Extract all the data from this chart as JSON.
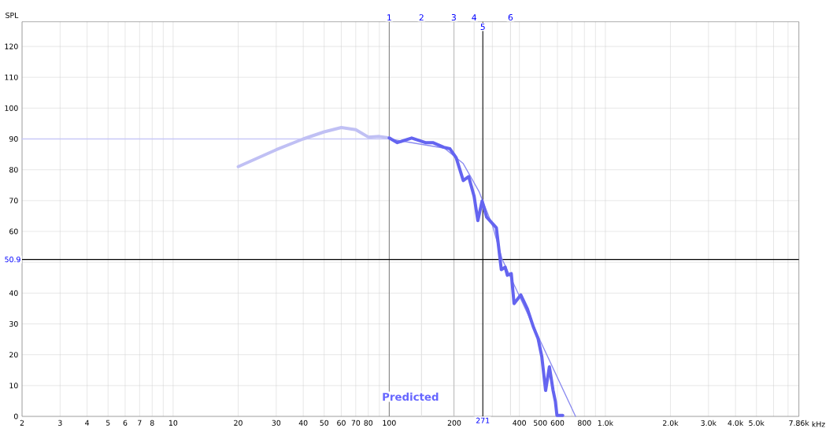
{
  "chart_data": {
    "type": "line",
    "ylabel": "SPL",
    "xlim": [
      2,
      7860
    ],
    "ylim": [
      0,
      128
    ],
    "xticks": [
      2,
      3,
      4,
      5,
      6,
      7,
      8,
      {
        "value": 9,
        "label": null
      },
      10,
      20,
      30,
      40,
      50,
      60,
      70,
      80,
      {
        "value": 90,
        "label": null
      },
      100,
      200,
      {
        "value": 300,
        "label": null
      },
      400,
      500,
      600,
      {
        "value": 700,
        "label": null
      },
      800,
      {
        "value": 900,
        "label": null
      },
      {
        "value": 1000,
        "label": "1.0k"
      },
      {
        "value": 2000,
        "label": "2.0k"
      },
      {
        "value": 3000,
        "label": "3.0k"
      },
      {
        "value": 4000,
        "label": "4.0k"
      },
      {
        "value": 5000,
        "label": "5.0k"
      },
      {
        "value": 6000,
        "label": null
      },
      {
        "value": 7000,
        "label": null
      },
      {
        "value": 7860,
        "label": "7.86k"
      }
    ],
    "xlabel": "kHz",
    "yticks": [
      0,
      10,
      20,
      30,
      40,
      {
        "value": 50,
        "label": null
      },
      60,
      70,
      80,
      90,
      100,
      110,
      120
    ],
    "log": "x",
    "grid": true,
    "marker": "none",
    "series": [
      {
        "color": "#c8c8f8",
        "x": [
          2,
          100
        ],
        "values": [
          90,
          90
        ]
      },
      {
        "color": "#c0c0f4",
        "x": [
          20,
          30,
          40,
          50,
          60,
          70,
          80,
          90,
          100
        ],
        "values": [
          81,
          86.5,
          90,
          92.3,
          93.7,
          93,
          90.6,
          90.8,
          90.3
        ]
      },
      {
        "color": "#8a8af0",
        "x": [
          100,
          180,
          220,
          260,
          300,
          333,
          728
        ],
        "values": [
          90,
          87,
          82,
          73,
          62,
          51,
          0
        ]
      },
      {
        "color": "#6464f0",
        "x": [
          100,
          109,
          127,
          147,
          159,
          179,
          191,
          204,
          220,
          233,
          247,
          257,
          269,
          282,
          313,
          330,
          344,
          352,
          367,
          378,
          406,
          436,
          465,
          488,
          508,
          529,
          551,
          573,
          587,
          597,
          635
        ],
        "values": [
          90.3,
          88.8,
          90.3,
          88.8,
          88.8,
          87.3,
          86.8,
          83.9,
          76.5,
          77.8,
          71.4,
          63.5,
          69.9,
          64.7,
          61.2,
          47.6,
          48.4,
          45.8,
          46.3,
          36.6,
          39.4,
          34.8,
          28.9,
          25.3,
          19.4,
          8.4,
          16.1,
          8.4,
          4.9,
          0.3,
          0.3
        ]
      }
    ],
    "ref_lines": [
      {
        "axis": "x",
        "value": 100,
        "color": "#808080"
      },
      {
        "axis": "x",
        "value": 141,
        "color": "#e0e0e0"
      },
      {
        "axis": "x",
        "value": 199,
        "color": "#c0c0c0"
      },
      {
        "axis": "x",
        "value": 247,
        "color": "#e0e0e0"
      },
      {
        "axis": "x",
        "value": 364,
        "color": "#e0e0e0"
      },
      {
        "axis": "x",
        "value": 271,
        "label": "271",
        "color": "#000000"
      },
      {
        "axis": "y",
        "value": 50.9,
        "label": "50.9",
        "color": "#000000"
      }
    ],
    "annotations": [
      "1",
      "2",
      "3",
      "4",
      "5",
      "6",
      "Predicted"
    ]
  }
}
